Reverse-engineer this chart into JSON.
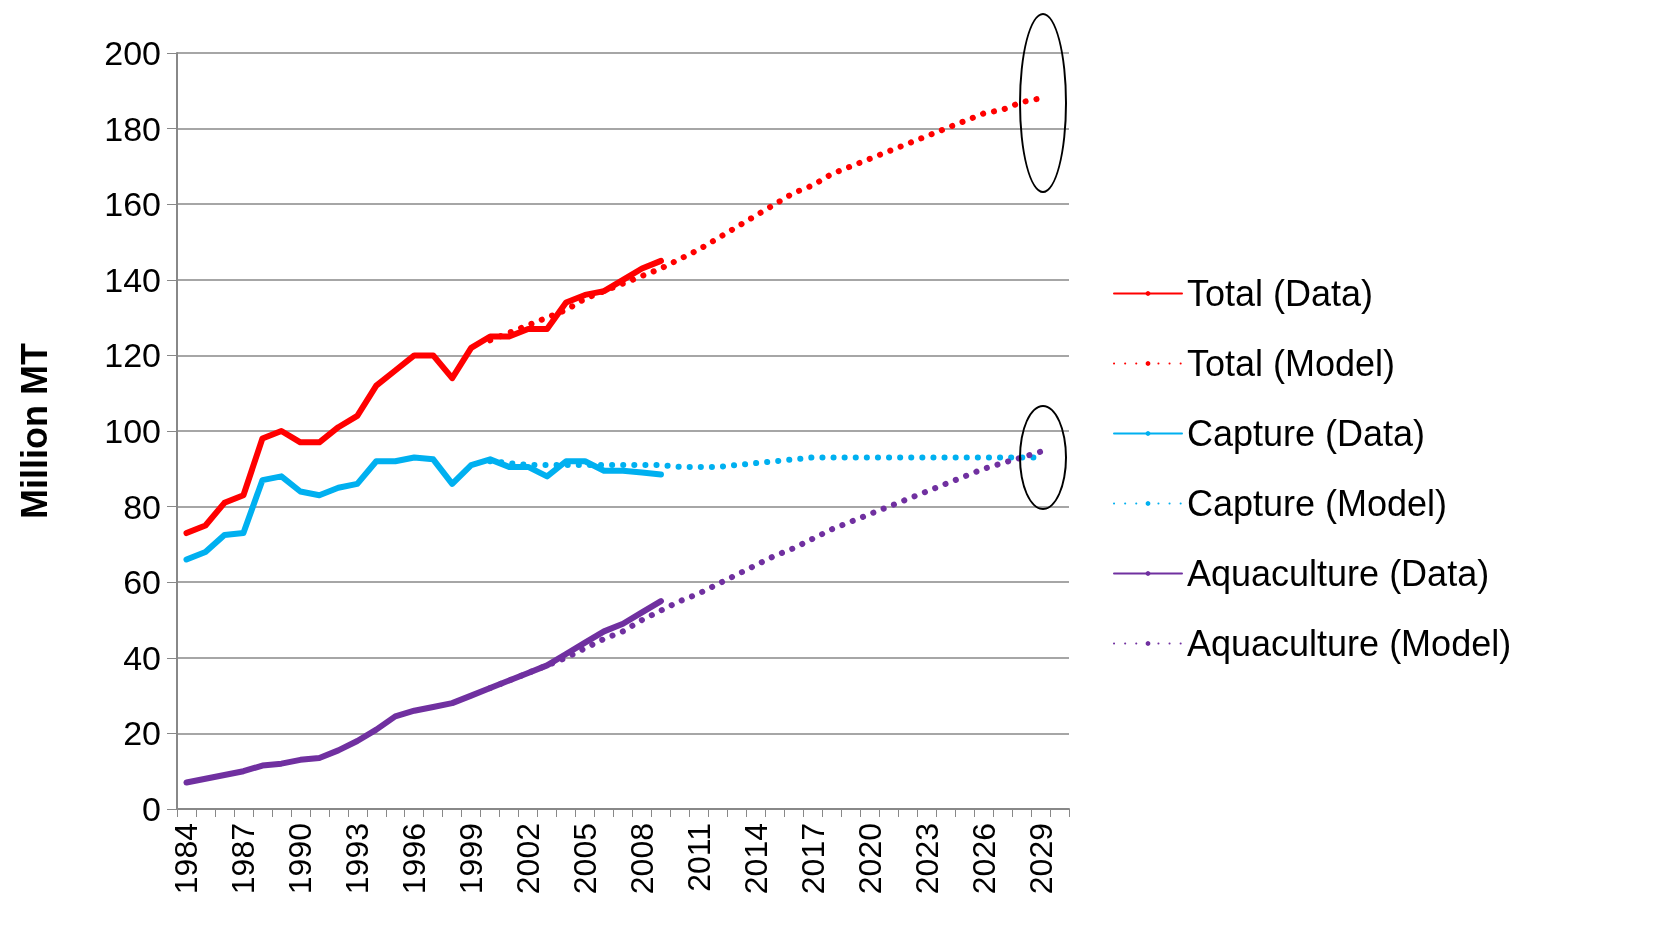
{
  "chart_data": {
    "type": "line",
    "ylabel": "Million MT",
    "categories": [
      "1984",
      null,
      null,
      "1987",
      null,
      null,
      "1990",
      null,
      null,
      "1993",
      null,
      null,
      "1996",
      null,
      null,
      "1999",
      null,
      null,
      "2002",
      null,
      null,
      "2005",
      null,
      null,
      "2008",
      null,
      null,
      "2011",
      null,
      null,
      "2014",
      null,
      null,
      "2017",
      null,
      null,
      "2020",
      null,
      null,
      "2023",
      null,
      null,
      "2026",
      null,
      null,
      "2029",
      null
    ],
    "ylim": [
      0,
      200
    ],
    "yticks": [
      0,
      20,
      40,
      60,
      80,
      100,
      120,
      140,
      160,
      180,
      200
    ],
    "grid": "y",
    "legend": "right",
    "marker": "none",
    "series": [
      {
        "name": "Total (Data)",
        "color": "#ff0000",
        "line_style": "solid",
        "values": [
          73,
          75,
          81,
          83,
          98,
          100,
          97,
          97,
          101,
          104,
          112,
          116,
          120,
          120,
          114,
          122,
          125,
          125,
          127,
          127,
          134,
          136,
          137,
          140,
          143,
          145,
          null,
          null,
          null,
          null,
          null,
          null,
          null,
          null,
          null,
          null,
          null,
          null,
          null,
          null,
          null,
          null,
          null,
          null,
          null,
          null,
          null
        ]
      },
      {
        "name": "Total (Model)",
        "color": "#ff0000",
        "line_style": "dotted",
        "values": [
          null,
          null,
          null,
          null,
          null,
          null,
          null,
          null,
          null,
          null,
          null,
          null,
          null,
          null,
          null,
          null,
          124,
          126,
          128,
          130,
          132,
          135,
          137,
          139,
          141,
          143,
          145.5,
          148,
          151,
          154,
          157,
          160,
          163,
          165,
          168,
          170,
          172,
          174,
          176,
          178,
          180,
          182,
          184,
          185,
          187,
          188,
          null
        ]
      },
      {
        "name": "Capture (Data)",
        "color": "#00b0f0",
        "line_style": "solid",
        "values": [
          66,
          68,
          72.5,
          73,
          87,
          88,
          84,
          83,
          85,
          86,
          92,
          92,
          93,
          92.5,
          86,
          91,
          92.5,
          90.5,
          90.5,
          88,
          92,
          92,
          89.5,
          89.5,
          89,
          88.5,
          null,
          null,
          null,
          null,
          null,
          null,
          null,
          null,
          null,
          null,
          null,
          null,
          null,
          null,
          null,
          null,
          null,
          null,
          null,
          null,
          null
        ]
      },
      {
        "name": "Capture (Model)",
        "color": "#00b0f0",
        "line_style": "dotted",
        "values": [
          null,
          null,
          null,
          null,
          null,
          null,
          null,
          null,
          null,
          null,
          null,
          null,
          null,
          null,
          null,
          null,
          92,
          91.5,
          91,
          91,
          91,
          91,
          91,
          91,
          91,
          91,
          90.5,
          90.5,
          90.5,
          91,
          91.5,
          92,
          92.5,
          93,
          93,
          93,
          93,
          93,
          93,
          93,
          93,
          93,
          93,
          93,
          93,
          93,
          null
        ]
      },
      {
        "name": "Aquaculture (Data)",
        "color": "#7030a0",
        "line_style": "solid",
        "values": [
          7,
          8,
          9,
          10,
          11.5,
          12,
          13,
          13.5,
          15.5,
          18,
          21,
          24.5,
          26,
          27,
          28,
          30,
          32,
          34,
          36,
          38,
          41,
          44,
          47,
          49,
          52,
          55,
          null,
          null,
          null,
          null,
          null,
          null,
          null,
          null,
          null,
          null,
          null,
          null,
          null,
          null,
          null,
          null,
          null,
          null,
          null,
          null,
          null
        ]
      },
      {
        "name": "Aquaculture (Model)",
        "color": "#7030a0",
        "line_style": "dotted",
        "values": [
          null,
          null,
          null,
          null,
          null,
          null,
          null,
          null,
          null,
          null,
          null,
          null,
          null,
          null,
          null,
          null,
          32,
          34,
          36,
          38,
          40,
          42.5,
          45,
          47,
          50,
          52.5,
          55,
          57,
          59.5,
          62,
          64.5,
          67,
          69,
          71.5,
          74,
          76,
          78,
          80,
          82,
          84,
          86,
          88,
          90,
          91.5,
          93,
          94.5,
          null
        ]
      }
    ]
  }
}
